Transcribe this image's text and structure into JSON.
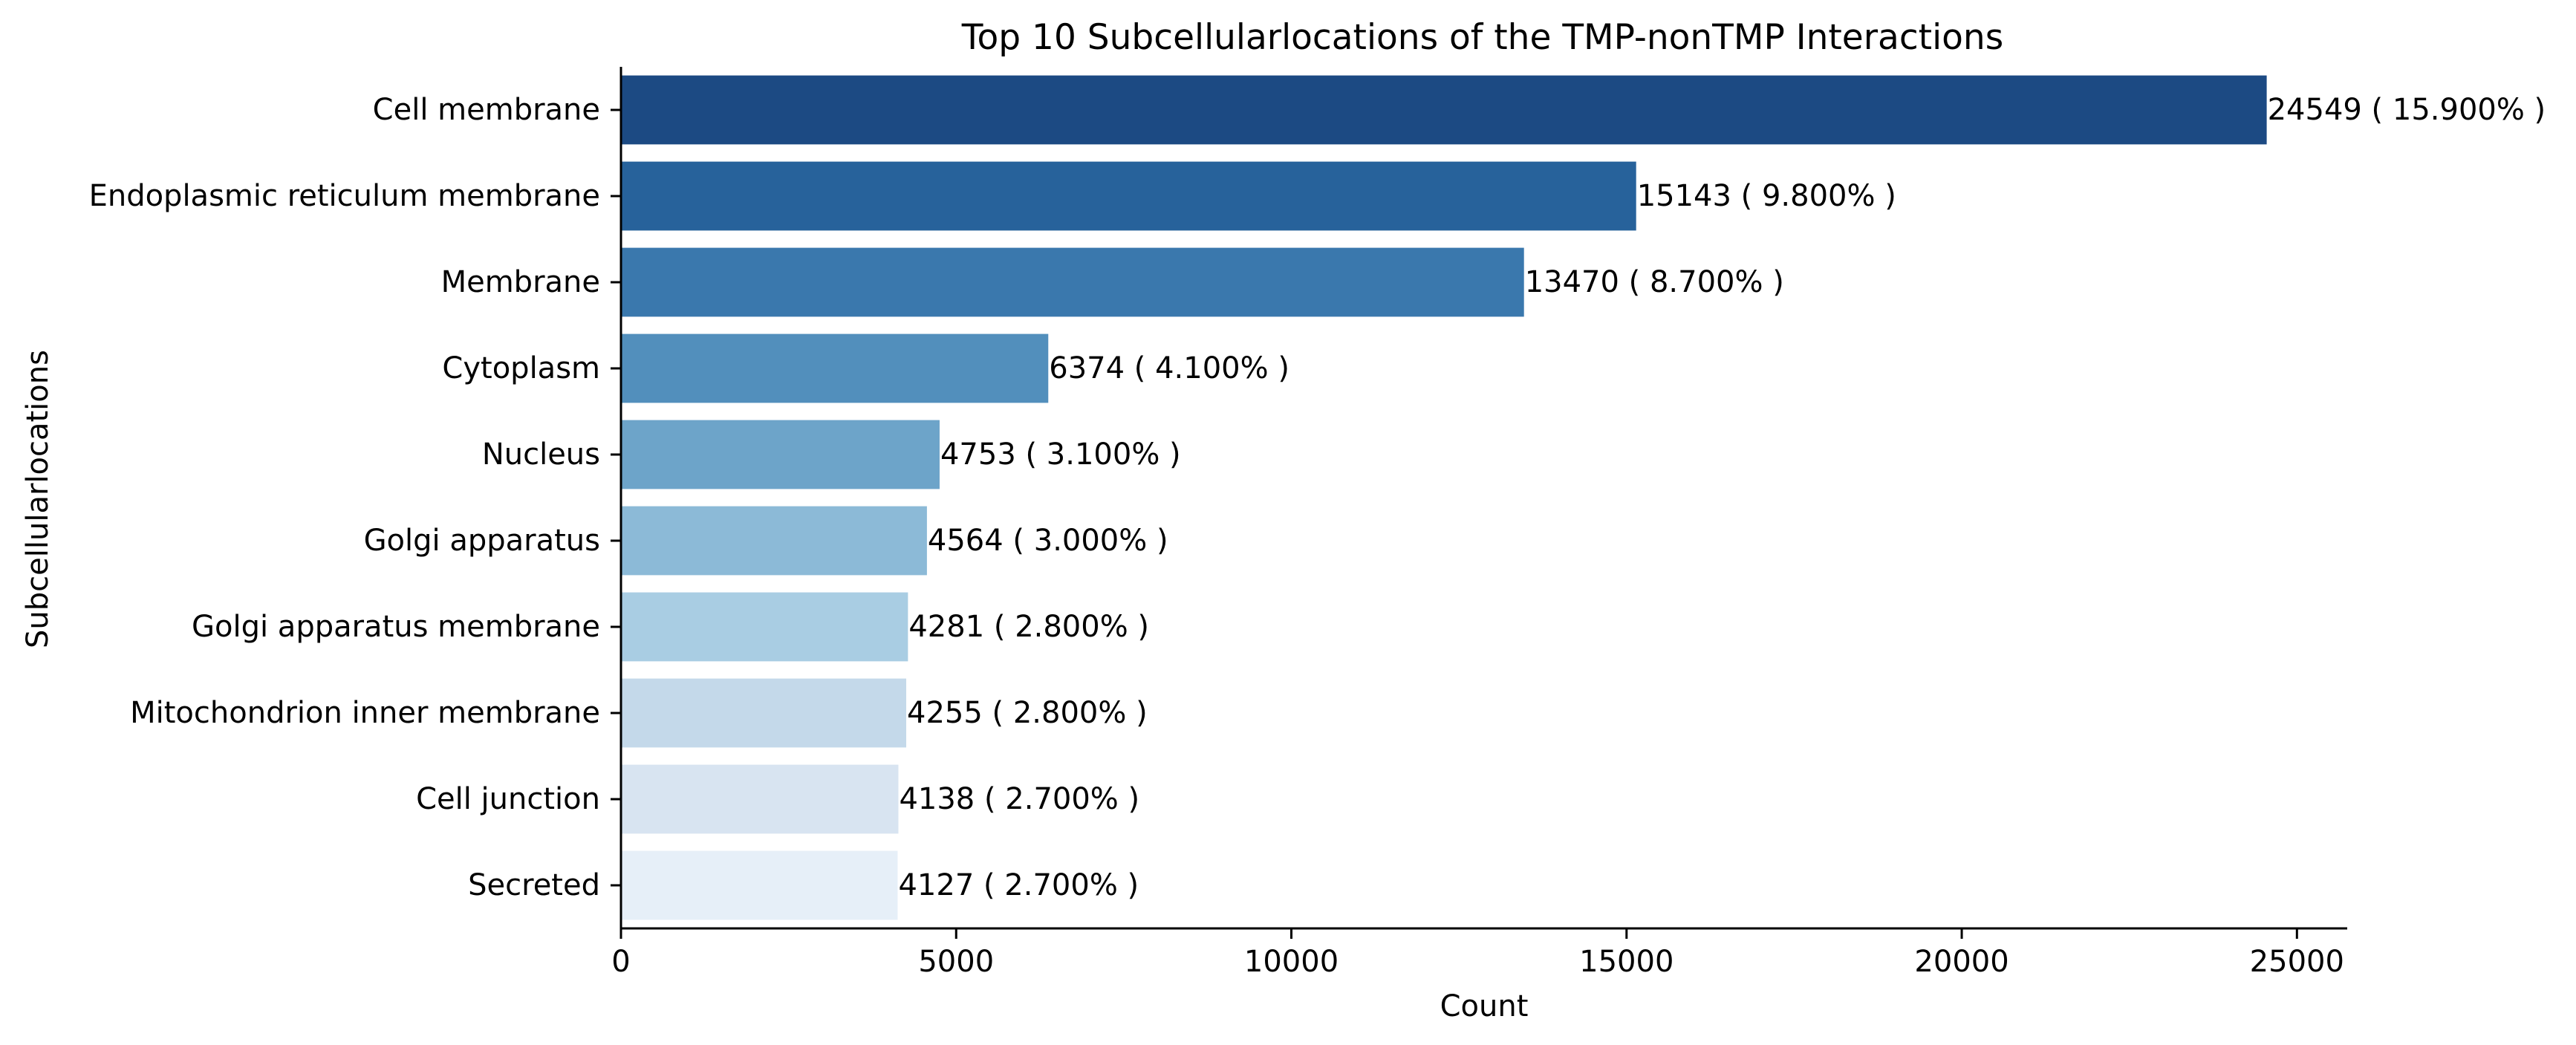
{
  "chart_data": {
    "type": "bar",
    "orientation": "horizontal",
    "title": "Top 10 Subcellularlocations of the TMP-nonTMP Interactions",
    "xlabel": "Count",
    "ylabel": "Subcellularlocations",
    "xlim": [
      0,
      25750
    ],
    "xticks": [
      0,
      5000,
      10000,
      15000,
      20000,
      25000
    ],
    "xtick_labels": [
      "0",
      "5000",
      "10000",
      "15000",
      "20000",
      "25000"
    ],
    "grid": false,
    "legend": "none",
    "categories": [
      "Cell membrane",
      "Endoplasmic reticulum membrane",
      "Membrane",
      "Cytoplasm",
      "Nucleus",
      "Golgi apparatus",
      "Golgi apparatus membrane",
      "Mitochondrion inner membrane",
      "Cell junction",
      "Secreted"
    ],
    "values": [
      24549,
      15143,
      13470,
      6374,
      4753,
      4564,
      4281,
      4255,
      4138,
      4127
    ],
    "data_labels": [
      "24549 ( 15.900% )",
      "15143 ( 9.800% )",
      "13470 ( 8.700% )",
      "6374 ( 4.100% )",
      "4753 ( 3.100% )",
      "4564 ( 3.000% )",
      "4281 ( 2.800% )",
      "4255 ( 2.800% )",
      "4138 ( 2.700% )",
      "4127 ( 2.700% )"
    ],
    "colors": [
      "#1c4a83",
      "#27629b",
      "#3a78ad",
      "#528fbc",
      "#6da4c9",
      "#8cbad7",
      "#a9cde3",
      "#c4d9ea",
      "#d8e4f1",
      "#e6eff8"
    ]
  }
}
